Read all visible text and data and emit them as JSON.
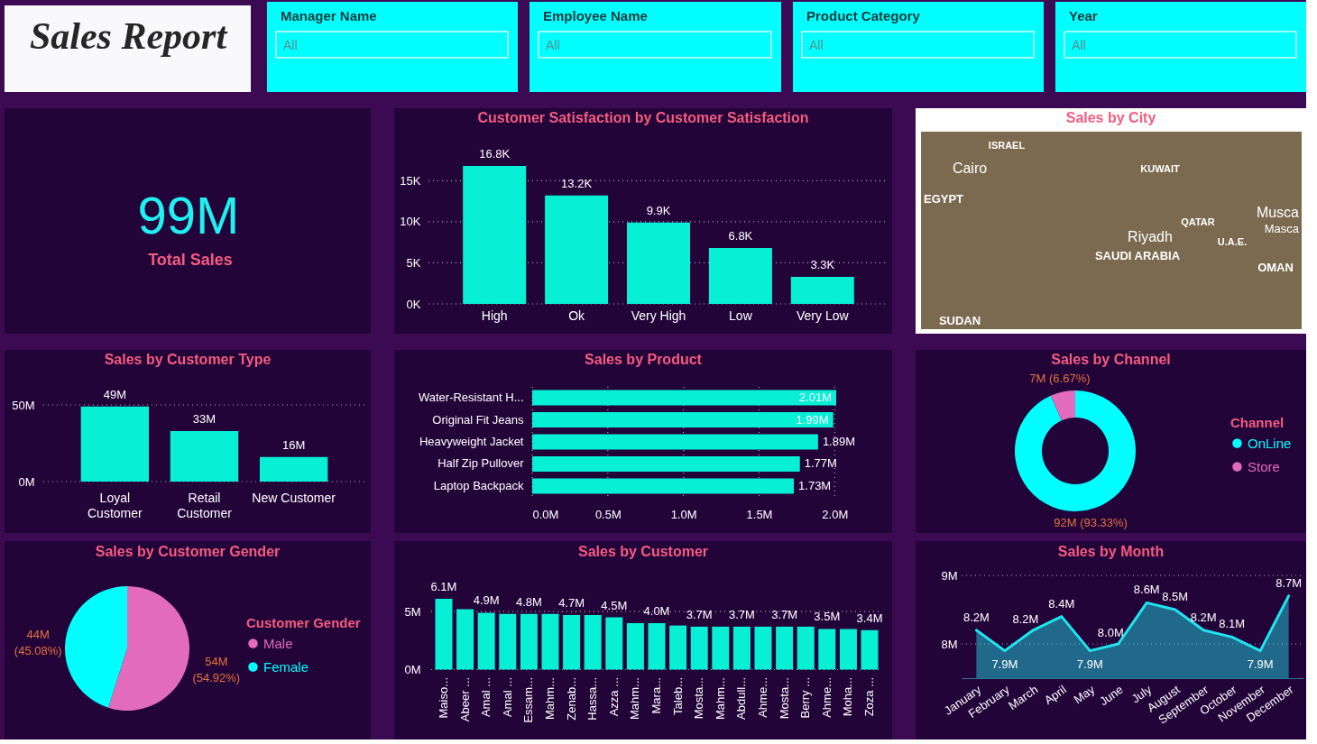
{
  "chart_data": [
    {
      "type": "other",
      "title": "Sales Report"
    },
    {
      "type": "other",
      "title": "Manager Name",
      "annotations": [
        "All"
      ]
    },
    {
      "type": "other",
      "title": "Employee Name",
      "annotations": [
        "All"
      ]
    },
    {
      "type": "other",
      "title": "Product Category",
      "annotations": [
        "All"
      ]
    },
    {
      "type": "other",
      "title": "Year",
      "annotations": [
        "All"
      ]
    },
    {
      "type": "other",
      "annotations": [
        "99M",
        "Total Sales"
      ]
    },
    {
      "type": "bar",
      "title": "Customer Satisfaction by Customer Satisfaction",
      "categories": [
        "High",
        "Ok",
        "Very High",
        "Low",
        "Very Low"
      ],
      "values": [
        16800,
        13200,
        9900,
        6800,
        3300
      ],
      "value_labels": [
        "16.8K",
        "13.2K",
        "9.9K",
        "6.8K",
        "3.3K"
      ],
      "color": "#07f0d6",
      "ylim": [
        0,
        16800
      ],
      "yticks": [
        {
          "value": 0,
          "label": "0K"
        },
        {
          "value": 5000,
          "label": "5K"
        },
        {
          "value": 10000,
          "label": "10K"
        },
        {
          "value": 15000,
          "label": "15K"
        }
      ],
      "grid": "y"
    },
    {
      "type": "other",
      "title": "Sales by City",
      "annotations": [
        "ISRAEL",
        "Cairo",
        "EGYPT",
        "KUWAIT",
        "QATAR",
        "Musca",
        "Masca",
        "Riyadh",
        "U.A.E.",
        "SAUDI ARABIA",
        "OMAN",
        "SUDAN"
      ]
    },
    {
      "type": "bar",
      "title": "Sales by Customer Type",
      "categories": [
        "Loyal Customer",
        "Retail Customer",
        "New Customer"
      ],
      "values": [
        49,
        33,
        16
      ],
      "value_labels": [
        "49M",
        "33M",
        "16M"
      ],
      "color": "#07f0d6",
      "ylim": [
        0,
        50
      ],
      "yticks": [
        {
          "value": 0,
          "label": "0M"
        },
        {
          "value": 50,
          "label": "50M"
        }
      ],
      "grid": "y"
    },
    {
      "type": "bar",
      "orientation": "horizontal",
      "title": "Sales by Product",
      "categories": [
        "Water-Resistant H...",
        "Original Fit Jeans",
        "Heavyweight Jacket",
        "Half Zip Pullover",
        "Laptop Backpack"
      ],
      "values": [
        2.01,
        1.99,
        1.89,
        1.77,
        1.73
      ],
      "value_labels": [
        "2.01M",
        "1.99M",
        "1.89M",
        "1.77M",
        "1.73M"
      ],
      "color": "#07f0d6",
      "xlim": [
        0,
        2.01
      ],
      "xticks": [
        {
          "value": 0,
          "label": "0.0M"
        },
        {
          "value": 0.5,
          "label": "0.5M"
        },
        {
          "value": 1,
          "label": "1.0M"
        },
        {
          "value": 1.5,
          "label": "1.5M"
        },
        {
          "value": 2,
          "label": "2.0M"
        }
      ],
      "grid": "x"
    },
    {
      "type": "donut",
      "title": "Sales by Channel",
      "categories": [
        "OnLine",
        "Store"
      ],
      "values": [
        93.33,
        6.67
      ],
      "value_labels": [
        "92M (93.33%)",
        "7M (6.67%)"
      ],
      "colors": [
        "#00ffff",
        "#e36bbd"
      ],
      "legend_title": "Channel",
      "legend": "right"
    },
    {
      "type": "pie",
      "title": "Sales by Customer Gender",
      "categories": [
        "Male",
        "Female"
      ],
      "values": [
        54.92,
        45.08
      ],
      "value_labels": [
        "54M (54.92%)",
        "44M (45.08%)"
      ],
      "colors": [
        "#e36bbd",
        "#00ffff"
      ],
      "legend_title": "Customer Gender",
      "legend": "right"
    },
    {
      "type": "bar",
      "title": "Sales by Customer",
      "categories": [
        "Maiso...",
        "Abeer ...",
        "Amal ...",
        "Amal ...",
        "Essam...",
        "Mahm...",
        "Zenab...",
        "Hassa...",
        "Azza ...",
        "Mahm...",
        "Mara...",
        "Taleb...",
        "Mosta...",
        "Mahm...",
        "Abdull...",
        "Ahme...",
        "Mosta...",
        "Berry ...",
        "Ahme...",
        "Moha...",
        "Zoza ..."
      ],
      "values": [
        6.1,
        5.2,
        4.9,
        4.8,
        4.8,
        4.8,
        4.7,
        4.7,
        4.5,
        4.0,
        4.0,
        3.8,
        3.7,
        3.7,
        3.7,
        3.7,
        3.7,
        3.7,
        3.5,
        3.5,
        3.4
      ],
      "value_labels": [
        "6.1M",
        null,
        "4.9M",
        null,
        "4.8M",
        null,
        "4.7M",
        null,
        "4.5M",
        null,
        "4.0M",
        null,
        "3.7M",
        null,
        "3.7M",
        null,
        "3.7M",
        null,
        "3.5M",
        null,
        "3.4M"
      ],
      "color": "#07f0d6",
      "ylim": [
        0,
        6.1
      ],
      "yticks": [
        {
          "value": 0,
          "label": "0M"
        },
        {
          "value": 5,
          "label": "5M"
        }
      ],
      "grid": "y"
    },
    {
      "type": "area",
      "title": "Sales by Month",
      "categories": [
        "January",
        "February",
        "March",
        "April",
        "May",
        "June",
        "July",
        "August",
        "September",
        "October",
        "November",
        "December"
      ],
      "values": [
        8.2,
        7.9,
        8.2,
        8.4,
        7.9,
        8.0,
        8.6,
        8.5,
        8.2,
        8.1,
        7.9,
        8.7
      ],
      "value_labels": [
        "8.2M",
        "7.9M",
        "8.2M",
        "8.4M",
        "7.9M",
        "8.0M",
        "8.6M",
        "8.5M",
        "8.2M",
        "8.1M",
        "7.9M",
        "8.7M"
      ],
      "color": "#1fe4ee",
      "ylim": [
        7.5,
        9
      ],
      "yticks": [
        {
          "value": 8,
          "label": "8M"
        },
        {
          "value": 9,
          "label": "9M"
        }
      ],
      "grid": "y"
    }
  ]
}
